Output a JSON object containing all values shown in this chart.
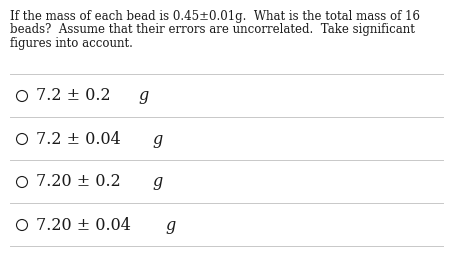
{
  "question_lines": [
    "If the mass of each bead is 0.45±0.01g.  What is the total mass of 16",
    "beads?  Assume that their errors are uncorrelated.  Take significant",
    "figures into account."
  ],
  "options": [
    [
      "7.2 ± 0.2 ",
      "g"
    ],
    [
      "7.2 ± 0.04 ",
      "g"
    ],
    [
      "7.20 ± 0.2 ",
      "g"
    ],
    [
      "7.20 ± 0.04 ",
      "g"
    ]
  ],
  "bg_color": "#ffffff",
  "text_color": "#1a1a1a",
  "question_fontsize": 8.5,
  "option_fontsize": 11.5,
  "divider_color": "#c8c8c8",
  "font_family": "DejaVu Serif"
}
